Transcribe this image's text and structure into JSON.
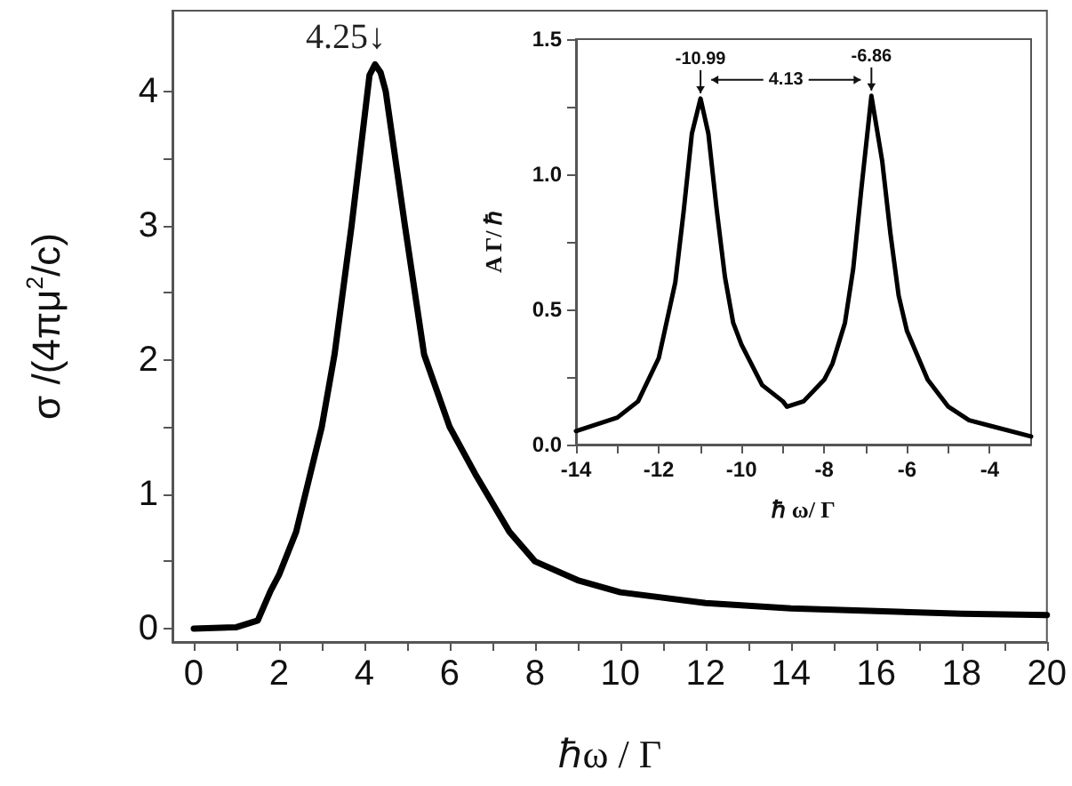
{
  "chart_data": [
    {
      "type": "line",
      "xlabel": "ℏω / Γ",
      "ylabel": "σ /(4πμ$^{2}$/c)",
      "xlim": [
        -0.5,
        20
      ],
      "ylim": [
        -0.1,
        4.6
      ],
      "xticks": [
        0,
        {
          "value": 1,
          "label": null
        },
        2,
        {
          "value": 3,
          "label": null
        },
        4,
        {
          "value": 5,
          "label": null
        },
        6,
        {
          "value": 7,
          "label": null
        },
        8,
        {
          "value": 9,
          "label": null
        },
        10,
        {
          "value": 11,
          "label": null
        },
        12,
        {
          "value": 13,
          "label": null
        },
        14,
        {
          "value": 15,
          "label": null
        },
        16,
        {
          "value": 17,
          "label": null
        },
        18,
        {
          "value": 19,
          "label": null
        },
        20
      ],
      "yticks": [
        0,
        {
          "value": 0.5,
          "label": null
        },
        1,
        {
          "value": 1.5,
          "label": null
        },
        2,
        {
          "value": 2.5,
          "label": null
        },
        3,
        {
          "value": 3.5,
          "label": null
        },
        4
      ],
      "grid": false,
      "annotations": [
        {
          "text": "4.25↓",
          "x": 4.25,
          "y": 4.2
        }
      ],
      "series": [
        {
          "color": "#000000",
          "x": [
            0,
            1,
            1.5,
            1.8,
            2,
            2.4,
            3,
            3.3,
            3.7,
            4,
            4.12,
            4.25,
            4.38,
            4.5,
            4.95,
            5.4,
            6,
            6.6,
            7.4,
            8,
            9,
            10,
            12,
            14,
            16,
            18,
            20
          ],
          "values": [
            0,
            0.01,
            0.06,
            0.28,
            0.4,
            0.72,
            1.5,
            2.04,
            3.0,
            3.8,
            4.12,
            4.2,
            4.14,
            4.0,
            3.0,
            2.04,
            1.5,
            1.15,
            0.72,
            0.5,
            0.36,
            0.27,
            0.19,
            0.15,
            0.13,
            0.11,
            0.1
          ]
        }
      ]
    },
    {
      "type": "line",
      "xlabel": "ℏ ω/ Γ",
      "ylabel": "A Γ/ ℏ",
      "xlim": [
        -14,
        -3
      ],
      "ylim": [
        0,
        1.5
      ],
      "xticks": [
        -14,
        {
          "value": -13,
          "label": null
        },
        -12,
        {
          "value": -11,
          "label": null
        },
        -10,
        {
          "value": -9,
          "label": null
        },
        -8,
        {
          "value": -7,
          "label": null
        },
        -6,
        {
          "value": -5,
          "label": null
        },
        -4
      ],
      "yticks": [
        {
          "value": 0,
          "label": "0.0"
        },
        {
          "value": 0.25,
          "label": null
        },
        0.5,
        {
          "value": 0.75,
          "label": null
        },
        {
          "value": 1,
          "label": "1.0"
        },
        {
          "value": 1.25,
          "label": null
        },
        1.5
      ],
      "grid": false,
      "annotations": [
        {
          "text": "-10.99",
          "x": -10.99,
          "y": 1.28
        },
        {
          "text": "-6.86",
          "x": -6.86,
          "y": 1.29
        },
        "4.13"
      ],
      "series": [
        {
          "color": "#000000",
          "x": [
            -14,
            -13,
            -12.5,
            -12,
            -11.6,
            -11.4,
            -11.2,
            -10.99,
            -10.8,
            -10.6,
            -10.4,
            -10.2,
            -10,
            -9.5,
            -9,
            -8.9,
            -8.5,
            -8,
            -7.8,
            -7.5,
            -7.3,
            -7.1,
            -6.86,
            -6.6,
            -6.4,
            -6.2,
            -6,
            -5.5,
            -5,
            -4.5,
            -4,
            -3
          ],
          "values": [
            0.05,
            0.1,
            0.16,
            0.32,
            0.6,
            0.86,
            1.15,
            1.28,
            1.15,
            0.87,
            0.62,
            0.45,
            0.37,
            0.22,
            0.16,
            0.14,
            0.16,
            0.24,
            0.3,
            0.45,
            0.65,
            0.95,
            1.29,
            1.05,
            0.78,
            0.55,
            0.42,
            0.24,
            0.14,
            0.09,
            0.07,
            0.03
          ]
        }
      ]
    }
  ]
}
